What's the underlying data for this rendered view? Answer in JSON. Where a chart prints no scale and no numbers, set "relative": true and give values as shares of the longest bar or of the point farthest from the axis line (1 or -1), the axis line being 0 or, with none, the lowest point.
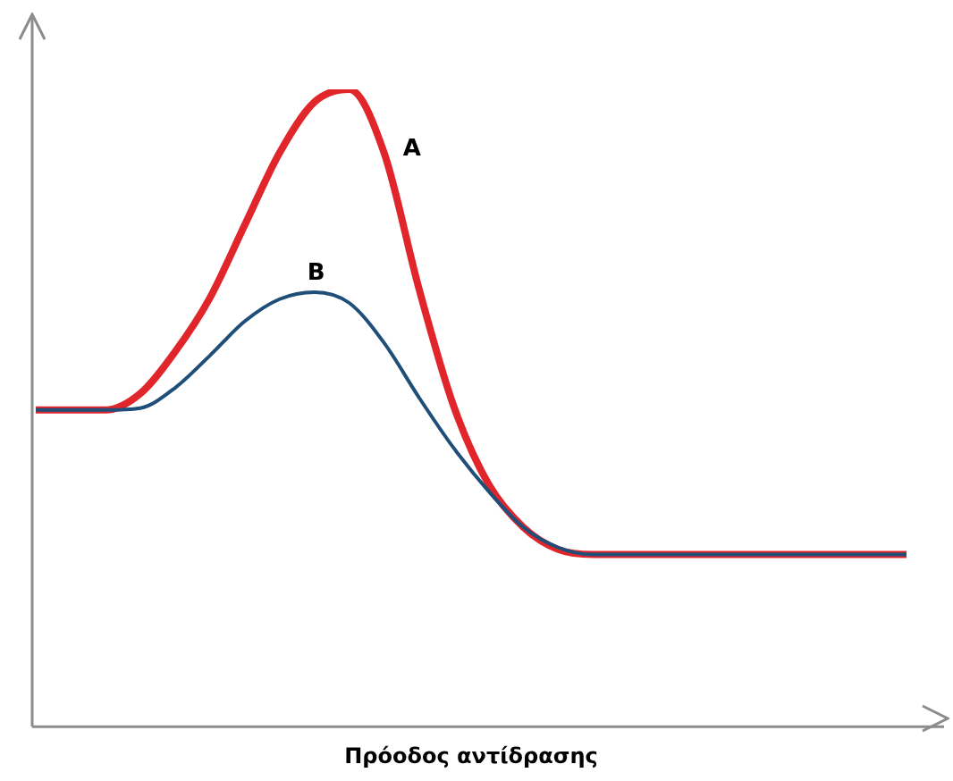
{
  "chart_data": {
    "type": "line",
    "xlabel": "Πρόοδος αντίδρασης",
    "relative": true,
    "legend": false,
    "grid": false,
    "marker": "none",
    "line_style": "solid",
    "categories": [
      null,
      null,
      null,
      null,
      null,
      null,
      null,
      null,
      null,
      null,
      null,
      null,
      null,
      null,
      null,
      null,
      null,
      null,
      null,
      null,
      null,
      null,
      null,
      null,
      null,
      null
    ],
    "series": [
      {
        "name": "A",
        "color": "#e0262b",
        "values": [
          0.494,
          0.494,
          0.494,
          0.52,
          0.586,
          0.671,
          0.786,
          0.9,
          0.98,
          1,
          0.9,
          0.686,
          0.5,
          0.377,
          0.309,
          0.274,
          0.266,
          0.266,
          0.266,
          0.266,
          0.266,
          0.266,
          0.266,
          0.266,
          0.266,
          0.266
        ]
      },
      {
        "name": "B",
        "color": "#1f4e79",
        "values": [
          0.494,
          0.494,
          0.494,
          0.497,
          0.529,
          0.58,
          0.634,
          0.669,
          0.68,
          0.663,
          0.6,
          0.514,
          0.434,
          0.366,
          0.309,
          0.277,
          0.266,
          0.266,
          0.266,
          0.266,
          0.266,
          0.266,
          0.266,
          0.266,
          0.266,
          0.266
        ]
      }
    ]
  }
}
